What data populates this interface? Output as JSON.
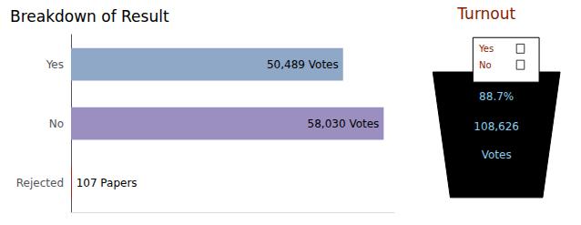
{
  "chart_data": {
    "type": "bar",
    "orientation": "horizontal",
    "title": "Breakdown of Result",
    "categories": [
      "Yes",
      "No",
      "Rejected"
    ],
    "values": [
      50489,
      58030,
      107
    ],
    "value_labels": [
      "50,489 Votes",
      "58,030 Votes",
      "107 Papers"
    ],
    "colors": [
      "#8FA8C8",
      "#9B8FBF",
      "#CC0000"
    ],
    "data_labels": true,
    "xlim": [
      0,
      60000
    ],
    "tick_labels": "y",
    "grid": false,
    "annotations": [
      {
        "text": "Turnout",
        "color": "#8B2000"
      },
      {
        "text": "88.7%",
        "color": "#87CEEB"
      },
      {
        "text": "108,626",
        "color": "#87CEEB"
      },
      {
        "text": "Votes",
        "color": "#87CEEB"
      },
      {
        "text": "Yes",
        "color": "#8B2000"
      },
      {
        "text": "No",
        "color": "#8B2000"
      }
    ]
  }
}
